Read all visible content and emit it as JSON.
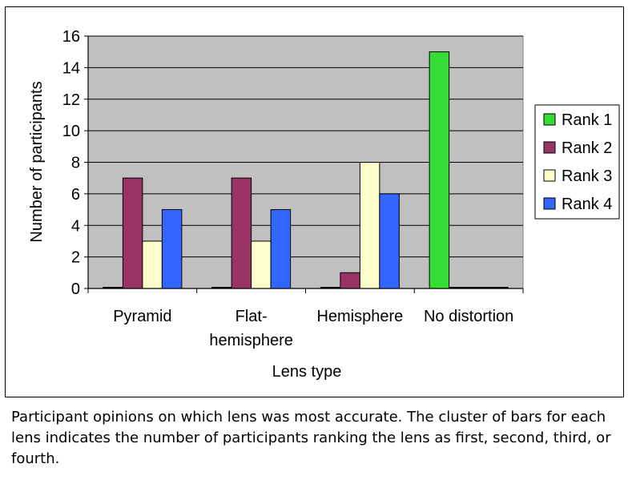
{
  "chart_data": {
    "type": "bar",
    "title": "",
    "xlabel": "Lens type",
    "ylabel": "Number of participants",
    "ylim": [
      0,
      16
    ],
    "yticks": [
      0,
      2,
      4,
      6,
      8,
      10,
      12,
      14,
      16
    ],
    "categories": [
      [
        "Pyramid"
      ],
      [
        "Flat-",
        "hemisphere"
      ],
      [
        "Hemisphere"
      ],
      [
        "No distortion"
      ]
    ],
    "grid": true,
    "legend_position": "right",
    "series": [
      {
        "name": "Rank 1",
        "color": "#33dd33",
        "values": [
          0,
          0,
          0,
          15
        ]
      },
      {
        "name": "Rank 2",
        "color": "#993366",
        "values": [
          7,
          7,
          1,
          0
        ]
      },
      {
        "name": "Rank 3",
        "color": "#ffffcc",
        "values": [
          3,
          3,
          8,
          0
        ]
      },
      {
        "name": "Rank 4",
        "color": "#3366ff",
        "values": [
          5,
          5,
          6,
          0
        ]
      }
    ],
    "plot_background": "#c0c0c0"
  },
  "caption": "Participant opinions on which lens was most accurate. The cluster of bars for each lens indicates the number of participants ranking the lens as first, second, third, or fourth."
}
